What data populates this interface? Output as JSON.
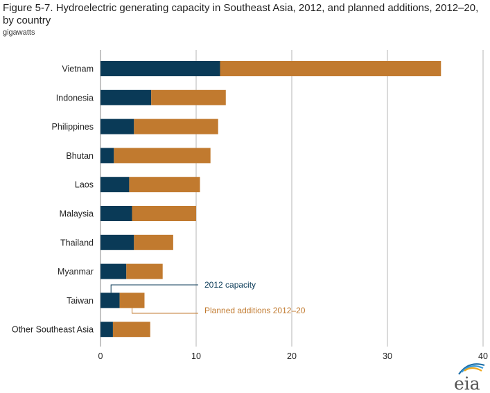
{
  "title": "Figure 5-7. Hydroelectric generating capacity in Southeast Asia, 2012, and planned additions, 2012–20, by country",
  "unit_label": "gigawatts",
  "colors": {
    "capacity_2012": "#0a3a57",
    "planned": "#c17a2f",
    "grid": "#b5b5b5"
  },
  "chart_data": {
    "type": "bar",
    "orientation": "horizontal",
    "stacked": true,
    "categories": [
      "Vietnam",
      "Indonesia",
      "Philippines",
      "Bhutan",
      "Laos",
      "Malaysia",
      "Thailand",
      "Myanmar",
      "Taiwan",
      "Other Southeast Asia"
    ],
    "series": [
      {
        "name": "2012 capacity",
        "values": [
          12.5,
          5.3,
          3.5,
          1.4,
          3.0,
          3.3,
          3.5,
          2.7,
          2.0,
          1.3
        ]
      },
      {
        "name": "Planned additions 2012–20",
        "values": [
          23.1,
          7.8,
          8.8,
          10.1,
          7.4,
          6.7,
          4.1,
          3.8,
          2.6,
          3.9
        ]
      }
    ],
    "xlim": [
      0,
      40
    ],
    "xticks": [
      0,
      10,
      20,
      30,
      40
    ],
    "xlabel": "",
    "ylabel": "",
    "grid": true,
    "annotations": [
      "2012 capacity",
      "Planned additions 2012–20"
    ]
  },
  "logo": {
    "text": "eia"
  }
}
